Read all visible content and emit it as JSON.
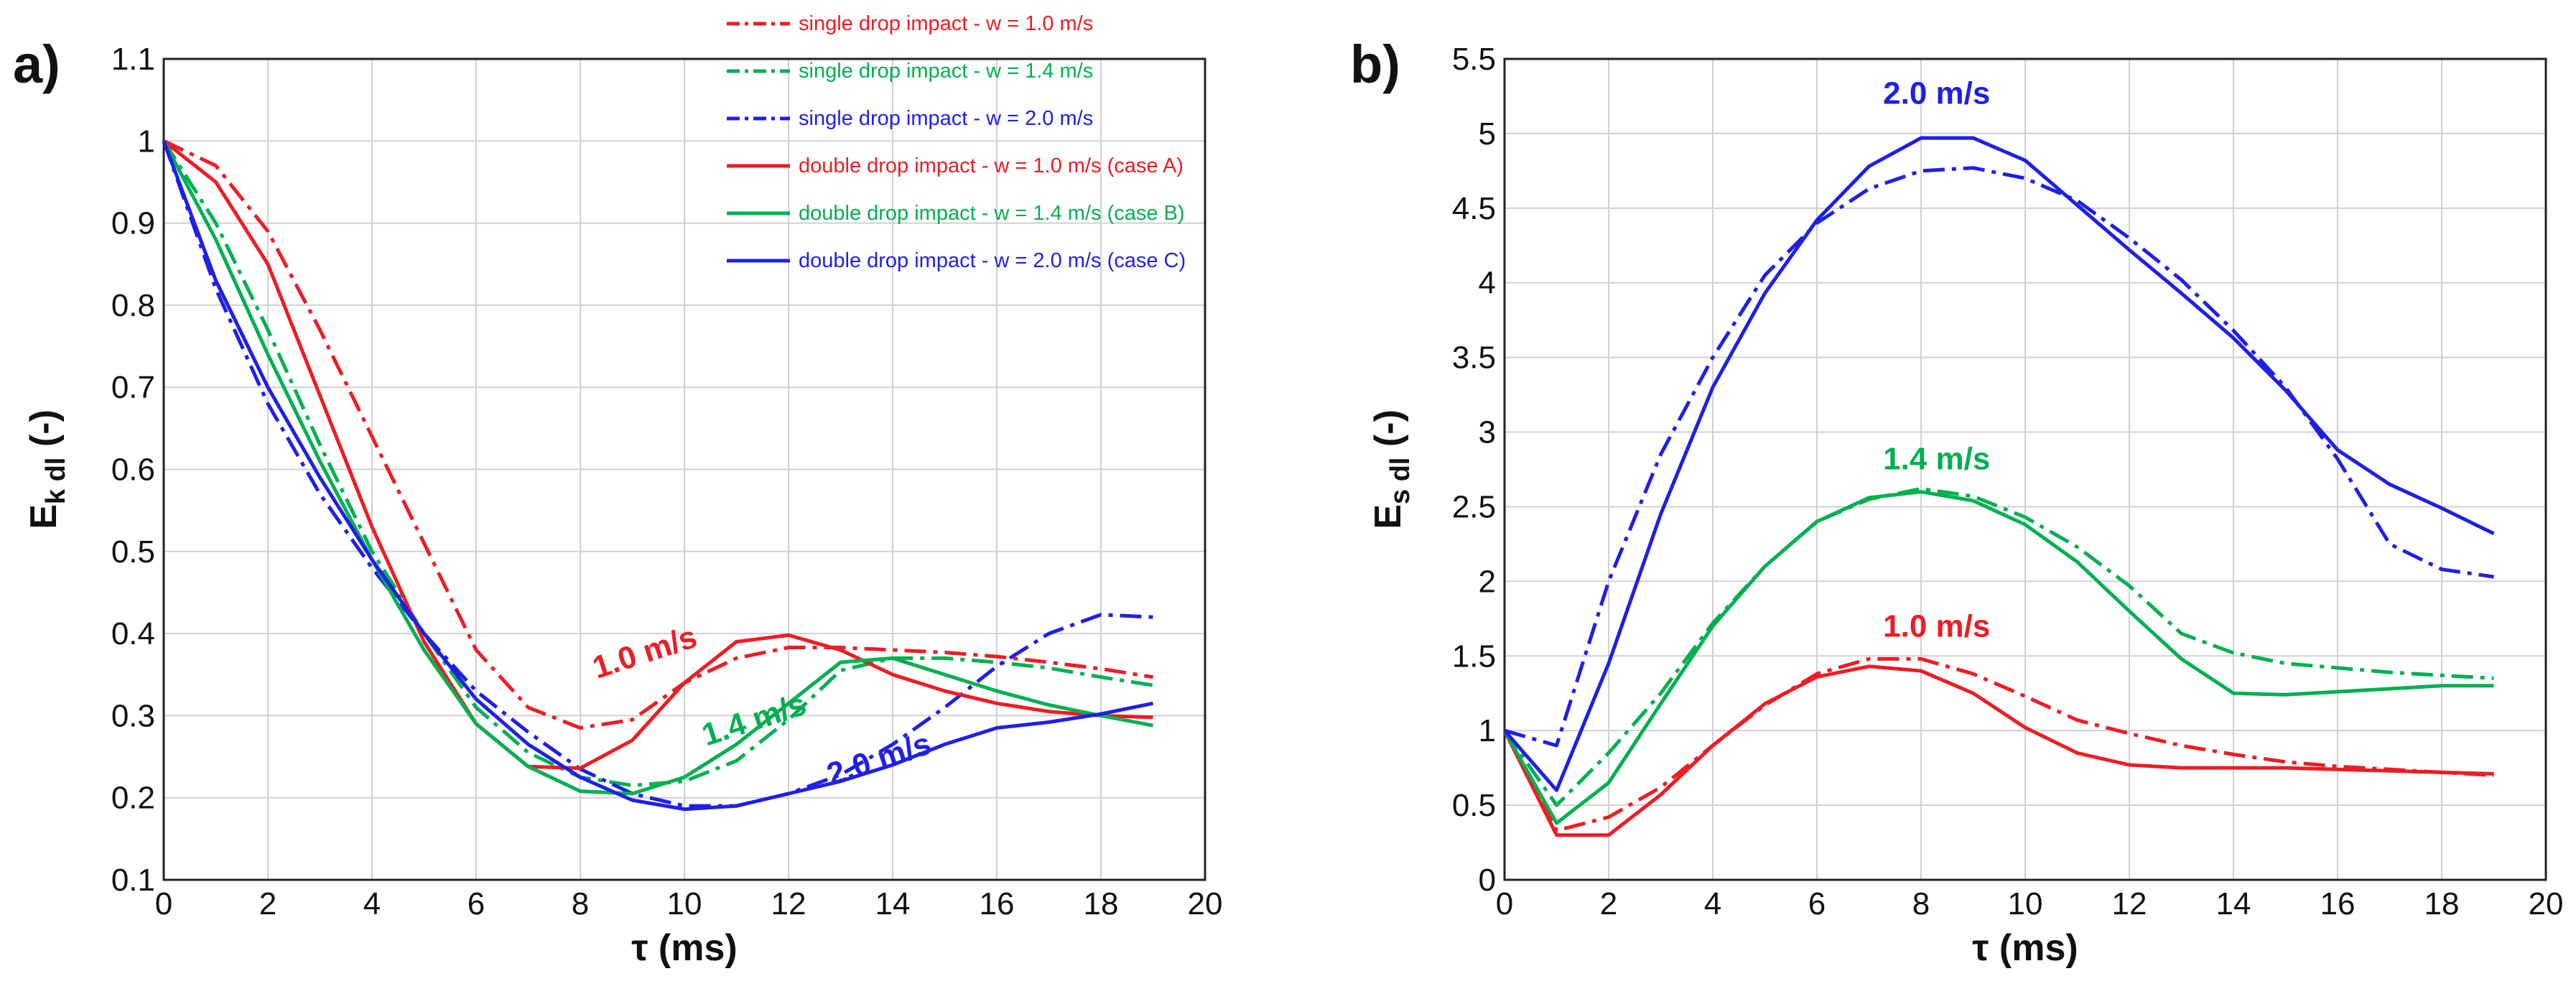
{
  "chart_data": [
    {
      "type": "line",
      "panel_label": "a)",
      "xlabel": "τ (ms)",
      "ylabel": "E",
      "ylabel_sub": "k dl",
      "ylabel_suffix": " (-)",
      "xlim": [
        0,
        20
      ],
      "ylim": [
        0.1,
        1.1
      ],
      "xticks": [
        "0",
        "2",
        "4",
        "6",
        "8",
        "10",
        "12",
        "14",
        "16",
        "18",
        "20"
      ],
      "yticks": [
        "0.1",
        "0.2",
        "0.3",
        "0.4",
        "0.5",
        "0.6",
        "0.7",
        "0.8",
        "0.9",
        "1",
        "1.1"
      ],
      "grid": true,
      "legend_position": "top-right",
      "series": [
        {
          "name": "single drop impact - w = 1.0 m/s",
          "color": "#ee1c24",
          "style": "dashdot",
          "x": [
            0,
            1,
            2,
            3,
            4,
            5,
            6,
            7,
            8,
            9,
            10,
            11,
            12,
            13,
            14,
            15,
            16,
            17,
            18,
            19
          ],
          "y": [
            1.0,
            0.97,
            0.89,
            0.77,
            0.64,
            0.51,
            0.38,
            0.31,
            0.285,
            0.295,
            0.34,
            0.37,
            0.383,
            0.383,
            0.38,
            0.377,
            0.372,
            0.365,
            0.357,
            0.347
          ]
        },
        {
          "name": "single drop impact - w = 1.4 m/s",
          "color": "#00b050",
          "style": "dashdot",
          "x": [
            0,
            1,
            2,
            3,
            4,
            5,
            6,
            7,
            8,
            9,
            10,
            11,
            12,
            13,
            14,
            15,
            16,
            17,
            18,
            19
          ],
          "y": [
            1.0,
            0.9,
            0.77,
            0.63,
            0.5,
            0.4,
            0.31,
            0.255,
            0.225,
            0.215,
            0.22,
            0.245,
            0.295,
            0.355,
            0.37,
            0.37,
            0.365,
            0.358,
            0.347,
            0.337
          ]
        },
        {
          "name": "single drop impact - w = 2.0 m/s",
          "color": "#1f1fe8",
          "style": "dashdot",
          "x": [
            0,
            1,
            2,
            3,
            4,
            5,
            6,
            7,
            8,
            9,
            10,
            11,
            12,
            13,
            14,
            15,
            16,
            17,
            18,
            19
          ],
          "y": [
            1.0,
            0.82,
            0.68,
            0.57,
            0.48,
            0.4,
            0.33,
            0.28,
            0.235,
            0.205,
            0.19,
            0.19,
            0.205,
            0.228,
            0.265,
            0.31,
            0.36,
            0.4,
            0.423,
            0.42
          ]
        },
        {
          "name": "double drop impact - w = 1.0 m/s (case A)",
          "color": "#ee1c24",
          "style": "solid",
          "x": [
            0,
            1,
            2,
            3,
            4,
            5,
            6,
            7,
            8,
            9,
            10,
            11,
            12,
            13,
            14,
            15,
            16,
            17,
            18,
            19
          ],
          "y": [
            1.0,
            0.95,
            0.85,
            0.69,
            0.53,
            0.39,
            0.29,
            0.238,
            0.236,
            0.27,
            0.34,
            0.39,
            0.398,
            0.38,
            0.35,
            0.33,
            0.315,
            0.305,
            0.3,
            0.298
          ]
        },
        {
          "name": "double drop impact - w = 1.4 m/s (case B)",
          "color": "#00b050",
          "style": "solid",
          "x": [
            0,
            1,
            2,
            3,
            4,
            5,
            6,
            7,
            8,
            9,
            10,
            11,
            12,
            13,
            14,
            15,
            16,
            17,
            18,
            19
          ],
          "y": [
            1.0,
            0.88,
            0.74,
            0.61,
            0.49,
            0.38,
            0.29,
            0.238,
            0.208,
            0.205,
            0.225,
            0.265,
            0.315,
            0.365,
            0.37,
            0.35,
            0.33,
            0.313,
            0.3,
            0.288
          ]
        },
        {
          "name": "double drop impact - w = 2.0 m/s (case C)",
          "color": "#1f1fe8",
          "style": "solid",
          "x": [
            0,
            1,
            2,
            3,
            4,
            5,
            6,
            7,
            8,
            9,
            10,
            11,
            12,
            13,
            14,
            15,
            16,
            17,
            18,
            19
          ],
          "y": [
            1.0,
            0.83,
            0.7,
            0.59,
            0.49,
            0.4,
            0.32,
            0.265,
            0.225,
            0.197,
            0.186,
            0.19,
            0.205,
            0.22,
            0.24,
            0.265,
            0.285,
            0.292,
            0.302,
            0.315
          ]
        }
      ],
      "annotations": [
        {
          "text": "1.0 m/s",
          "color": "#ee1c24",
          "x": 9.3,
          "y": 0.365
        },
        {
          "text": "1.4 m/s",
          "color": "#00b050",
          "x": 11.4,
          "y": 0.283
        },
        {
          "text": "2.0 m/s",
          "color": "#1f1fe8",
          "x": 13.8,
          "y": 0.235
        }
      ]
    },
    {
      "type": "line",
      "panel_label": "b)",
      "xlabel": "τ (ms)",
      "ylabel": "E",
      "ylabel_sub": "s dl",
      "ylabel_suffix": " (-)",
      "xlim": [
        0,
        20
      ],
      "ylim": [
        0,
        5.5
      ],
      "xticks": [
        "0",
        "2",
        "4",
        "6",
        "8",
        "10",
        "12",
        "14",
        "16",
        "18",
        "20"
      ],
      "yticks": [
        "0",
        "0.5",
        "1",
        "1.5",
        "2",
        "2.5",
        "3",
        "3.5",
        "4",
        "4.5",
        "5",
        "5.5"
      ],
      "grid": true,
      "series": [
        {
          "name": "single drop impact - w = 1.0 m/s",
          "color": "#ee1c24",
          "style": "dashdot",
          "x": [
            0,
            1,
            2,
            3,
            4,
            5,
            6,
            7,
            8,
            9,
            10,
            11,
            12,
            13,
            14,
            15,
            16,
            17,
            18,
            19
          ],
          "y": [
            1.0,
            0.33,
            0.42,
            0.62,
            0.9,
            1.17,
            1.38,
            1.48,
            1.48,
            1.38,
            1.23,
            1.07,
            0.98,
            0.9,
            0.84,
            0.79,
            0.76,
            0.74,
            0.72,
            0.7
          ]
        },
        {
          "name": "single drop impact - w = 1.4 m/s",
          "color": "#00b050",
          "style": "dashdot",
          "x": [
            0,
            1,
            2,
            3,
            4,
            5,
            6,
            7,
            8,
            9,
            10,
            11,
            12,
            13,
            14,
            15,
            16,
            17,
            18,
            19
          ],
          "y": [
            1.0,
            0.5,
            0.85,
            1.25,
            1.72,
            2.1,
            2.4,
            2.55,
            2.62,
            2.57,
            2.43,
            2.23,
            1.97,
            1.65,
            1.52,
            1.45,
            1.42,
            1.39,
            1.37,
            1.35
          ]
        },
        {
          "name": "single drop impact - w = 2.0 m/s",
          "color": "#1f1fe8",
          "style": "dashdot",
          "x": [
            0,
            1,
            2,
            3,
            4,
            5,
            6,
            7,
            8,
            9,
            10,
            11,
            12,
            13,
            14,
            15,
            16,
            17,
            18,
            19
          ],
          "y": [
            1.0,
            0.9,
            2.0,
            2.85,
            3.5,
            4.05,
            4.4,
            4.63,
            4.75,
            4.77,
            4.7,
            4.55,
            4.3,
            4.02,
            3.68,
            3.3,
            2.82,
            2.25,
            2.08,
            2.03
          ]
        },
        {
          "name": "double drop impact - w = 1.0 m/s (case A)",
          "color": "#ee1c24",
          "style": "solid",
          "x": [
            0,
            1,
            2,
            3,
            4,
            5,
            6,
            7,
            8,
            9,
            10,
            11,
            12,
            13,
            14,
            15,
            16,
            17,
            18,
            19
          ],
          "y": [
            1.0,
            0.3,
            0.3,
            0.57,
            0.9,
            1.18,
            1.36,
            1.43,
            1.4,
            1.25,
            1.02,
            0.85,
            0.77,
            0.75,
            0.75,
            0.75,
            0.74,
            0.73,
            0.72,
            0.71
          ]
        },
        {
          "name": "double drop impact - w = 1.4 m/s (case B)",
          "color": "#00b050",
          "style": "solid",
          "x": [
            0,
            1,
            2,
            3,
            4,
            5,
            6,
            7,
            8,
            9,
            10,
            11,
            12,
            13,
            14,
            15,
            16,
            17,
            18,
            19
          ],
          "y": [
            1.0,
            0.38,
            0.65,
            1.18,
            1.7,
            2.1,
            2.4,
            2.56,
            2.6,
            2.54,
            2.38,
            2.13,
            1.8,
            1.48,
            1.25,
            1.24,
            1.26,
            1.28,
            1.3,
            1.3
          ]
        },
        {
          "name": "double drop impact - w = 2.0 m/s (case C)",
          "color": "#1f1fe8",
          "style": "solid",
          "x": [
            0,
            1,
            2,
            3,
            4,
            5,
            6,
            7,
            8,
            9,
            10,
            11,
            12,
            13,
            14,
            15,
            16,
            17,
            18,
            19
          ],
          "y": [
            1.0,
            0.6,
            1.45,
            2.45,
            3.3,
            3.93,
            4.42,
            4.78,
            4.97,
            4.97,
            4.82,
            4.52,
            4.22,
            3.93,
            3.63,
            3.28,
            2.88,
            2.65,
            2.49,
            2.32
          ]
        }
      ],
      "annotations": [
        {
          "text": "2.0 m/s",
          "color": "#1f1fe8",
          "x": 8.3,
          "y": 5.2
        },
        {
          "text": "1.4 m/s",
          "color": "#00b050",
          "x": 8.3,
          "y": 2.75
        },
        {
          "text": "1.0 m/s",
          "color": "#ee1c24",
          "x": 8.3,
          "y": 1.63
        }
      ]
    }
  ]
}
